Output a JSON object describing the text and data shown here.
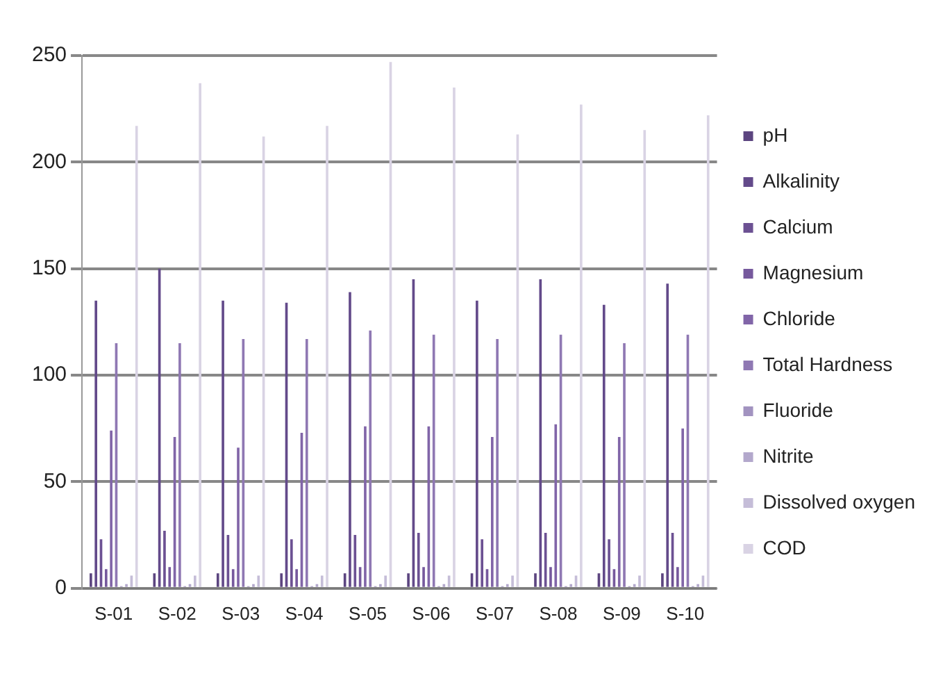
{
  "chart_data": {
    "type": "bar",
    "categories": [
      "S-01",
      "S-02",
      "S-03",
      "S-04",
      "S-05",
      "S-06",
      "S-07",
      "S-08",
      "S-09",
      "S-10"
    ],
    "series": [
      {
        "name": "pH",
        "color": "#5c4580",
        "values": [
          7,
          7,
          7,
          7,
          7,
          7,
          7,
          7,
          7,
          7
        ]
      },
      {
        "name": "Alkalinity",
        "color": "#634a8a",
        "values": [
          135,
          150,
          135,
          134,
          139,
          145,
          135,
          145,
          133,
          143
        ]
      },
      {
        "name": "Calcium",
        "color": "#6c5193",
        "values": [
          23,
          27,
          25,
          23,
          25,
          26,
          23,
          26,
          23,
          26
        ]
      },
      {
        "name": "Magnesium",
        "color": "#76599d",
        "values": [
          9,
          10,
          9,
          9,
          10,
          10,
          9,
          10,
          9,
          10
        ]
      },
      {
        "name": "Chloride",
        "color": "#8165a8",
        "values": [
          74,
          71,
          66,
          73,
          76,
          76,
          71,
          77,
          71,
          75
        ]
      },
      {
        "name": "Total Hardness",
        "color": "#8f78b3",
        "values": [
          115,
          115,
          117,
          117,
          121,
          119,
          117,
          119,
          115,
          119
        ]
      },
      {
        "name": "Fluoride",
        "color": "#a293c0",
        "values": [
          1,
          1,
          1,
          1,
          1,
          1,
          1,
          1,
          1,
          1
        ]
      },
      {
        "name": "Nitrite",
        "color": "#b3a8cc",
        "values": [
          2,
          2,
          2,
          2,
          2,
          2,
          2,
          2,
          2,
          2
        ]
      },
      {
        "name": "Dissolved oxygen",
        "color": "#c5bdd8",
        "values": [
          6,
          6,
          6,
          6,
          6,
          6,
          6,
          6,
          6,
          6
        ]
      },
      {
        "name": "COD",
        "color": "#d9d3e4",
        "values": [
          217,
          237,
          212,
          217,
          247,
          235,
          213,
          227,
          215,
          222
        ]
      }
    ],
    "ylim": [
      0,
      250
    ],
    "yticks": [
      0,
      50,
      100,
      150,
      200,
      250
    ],
    "grid": "y",
    "legend": "right"
  }
}
